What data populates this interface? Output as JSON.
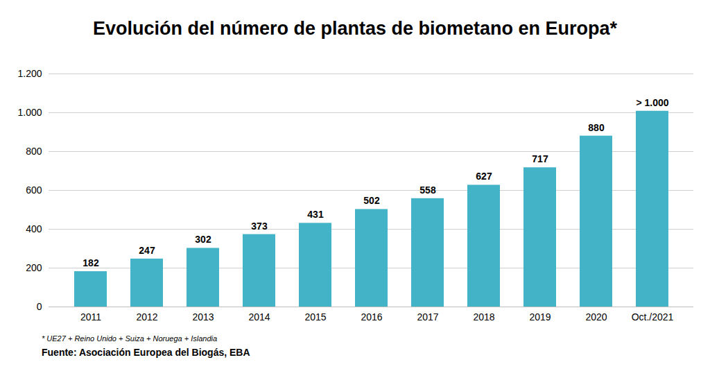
{
  "chart_data": {
    "type": "bar",
    "title": "Evolución del número de plantas de biometano en Europa*",
    "categories": [
      "2011",
      "2012",
      "2013",
      "2014",
      "2015",
      "2016",
      "2017",
      "2018",
      "2019",
      "2020",
      "Oct./2021"
    ],
    "values": [
      182,
      247,
      302,
      373,
      431,
      502,
      558,
      627,
      717,
      880,
      1008
    ],
    "value_labels": [
      "182",
      "247",
      "302",
      "373",
      "431",
      "502",
      "558",
      "627",
      "717",
      "880",
      "> 1.000"
    ],
    "color": "#43b3c8",
    "ylim": [
      0,
      1200
    ],
    "yticks": [
      0,
      200,
      400,
      600,
      800,
      {
        "value": 1000,
        "label": "1.000"
      },
      {
        "value": 1200,
        "label": "1.200"
      }
    ],
    "grid": true,
    "data_labels": true,
    "footnote": "* UE27 + Reino Unido + Suiza + Noruega + Islandia",
    "source": "Fuente:  Asociación Europea del Biogás, EBA"
  }
}
